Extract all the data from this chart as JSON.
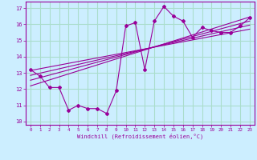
{
  "xlabel": "Windchill (Refroidissement éolien,°C)",
  "bg_color": "#cceeff",
  "grid_color": "#aaddcc",
  "line_color": "#990099",
  "x_ticks": [
    0,
    1,
    2,
    3,
    4,
    5,
    6,
    7,
    8,
    9,
    10,
    11,
    12,
    13,
    14,
    15,
    16,
    17,
    18,
    19,
    20,
    21,
    22,
    23
  ],
  "y_ticks": [
    10,
    11,
    12,
    13,
    14,
    15,
    16,
    17
  ],
  "xlim": [
    -0.5,
    23.5
  ],
  "ylim": [
    9.8,
    17.4
  ],
  "main_series_x": [
    0,
    1,
    2,
    3,
    4,
    5,
    6,
    7,
    8,
    9,
    10,
    11,
    12,
    13,
    14,
    15,
    16,
    17,
    18,
    19,
    20,
    21,
    22,
    23
  ],
  "main_series_y": [
    13.2,
    12.8,
    12.1,
    12.1,
    10.7,
    11.0,
    10.8,
    10.8,
    10.5,
    11.9,
    15.9,
    16.1,
    13.2,
    16.2,
    17.1,
    16.5,
    16.2,
    15.2,
    15.8,
    15.6,
    15.5,
    15.5,
    15.9,
    16.4
  ],
  "reg_lines": [
    {
      "x": [
        0,
        23
      ],
      "y": [
        12.2,
        16.45
      ]
    },
    {
      "x": [
        0,
        23
      ],
      "y": [
        12.55,
        16.2
      ]
    },
    {
      "x": [
        0,
        23
      ],
      "y": [
        12.85,
        15.95
      ]
    },
    {
      "x": [
        0,
        23
      ],
      "y": [
        13.15,
        15.7
      ]
    }
  ]
}
